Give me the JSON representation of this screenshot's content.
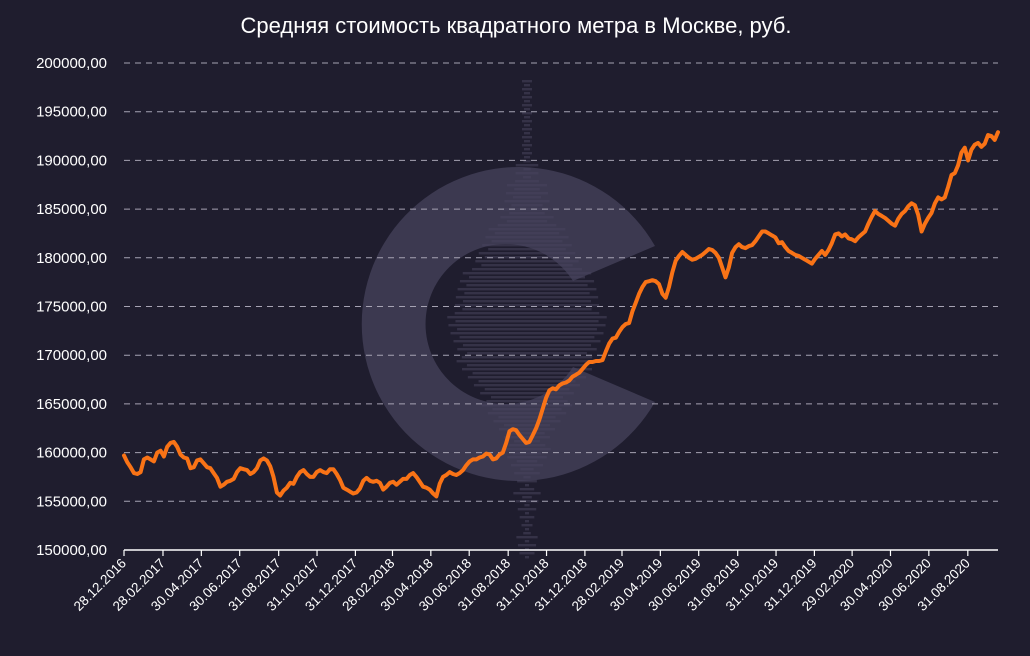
{
  "chart_data": {
    "type": "line",
    "title": "Средняя стоимость квадратного метра в Москве, руб.",
    "xlabel": "",
    "ylabel": "",
    "ylim": [
      150000,
      200000
    ],
    "y_ticks": [
      "150000,00",
      "155000,00",
      "160000,00",
      "165000,00",
      "170000,00",
      "175000,00",
      "180000,00",
      "185000,00",
      "190000,00",
      "195000,00",
      "200000,00"
    ],
    "x_ticks": [
      "28.12.2016",
      "28.02.2017",
      "30.04.2017",
      "30.06.2017",
      "31.08.2017",
      "31.10.2017",
      "31.12.2017",
      "28.02.2018",
      "30.04.2018",
      "30.06.2018",
      "31.08.2018",
      "31.10.2018",
      "31.12.2018",
      "28.02.2019",
      "30.04.2019",
      "30.06.2019",
      "31.08.2019",
      "31.10.2019",
      "31.12.2019",
      "29.02.2020",
      "30.04.2020",
      "30.06.2020",
      "31.08.2020"
    ],
    "x_start": "28.12.2016",
    "x_end": "18.10.2020",
    "grid": true,
    "legend": "none",
    "line_color": "#f97316",
    "series": [
      {
        "name": "",
        "values": [
          159700,
          159000,
          158500,
          157900,
          157800,
          158000,
          159300,
          159500,
          159300,
          159100,
          160000,
          160200,
          159600,
          160600,
          161000,
          161100,
          160600,
          159800,
          159500,
          159400,
          158400,
          158500,
          159200,
          159300,
          158900,
          158500,
          158400,
          157900,
          157400,
          156500,
          156700,
          157000,
          157100,
          157300,
          158000,
          158400,
          158300,
          158200,
          157800,
          158000,
          158400,
          159200,
          159400,
          159200,
          158600,
          157500,
          155900,
          155600,
          156100,
          156400,
          156900,
          156800,
          157500,
          158000,
          158200,
          157800,
          157500,
          157500,
          158000,
          158200,
          158000,
          157900,
          158300,
          158300,
          157800,
          157200,
          156400,
          156200,
          156000,
          155800,
          155900,
          156300,
          157100,
          157400,
          157100,
          157000,
          157100,
          156900,
          156200,
          156500,
          156900,
          157000,
          156700,
          157000,
          157300,
          157300,
          157700,
          157900,
          157500,
          157000,
          156500,
          156400,
          156200,
          155800,
          155500,
          156800,
          157500,
          157700,
          158000,
          157800,
          157700,
          157900,
          158200,
          158700,
          159100,
          159300,
          159300,
          159500,
          159600,
          159900,
          159800,
          159300,
          159400,
          159800,
          160000,
          161000,
          162200,
          162400,
          162300,
          161800,
          161400,
          161000,
          161100,
          161800,
          162500,
          163400,
          164500,
          165600,
          166400,
          166600,
          166500,
          166900,
          167100,
          167200,
          167400,
          167800,
          168000,
          168200,
          168600,
          169000,
          169300,
          169300,
          169400,
          169400,
          169500,
          170400,
          171200,
          171700,
          171800,
          172400,
          172900,
          173200,
          173300,
          174500,
          175400,
          176300,
          177000,
          177500,
          177600,
          177700,
          177600,
          177300,
          176300,
          175900,
          177000,
          178500,
          179700,
          180200,
          180600,
          180300,
          180000,
          179800,
          179900,
          180100,
          180300,
          180600,
          180900,
          180800,
          180500,
          180000,
          179000,
          178000,
          179000,
          180500,
          181100,
          181400,
          181100,
          181000,
          181200,
          181300,
          181700,
          182200,
          182700,
          182700,
          182500,
          182300,
          182100,
          181500,
          181600,
          181100,
          180700,
          180500,
          180300,
          180200,
          180000,
          179800,
          179600,
          179400,
          179900,
          180300,
          180700,
          180300,
          180800,
          181500,
          182400,
          182500,
          182200,
          182400,
          182000,
          181900,
          181700,
          182100,
          182400,
          182700,
          183500,
          184200,
          184800,
          184500,
          184300,
          184100,
          183800,
          183500,
          183300,
          184000,
          184500,
          184800,
          185300,
          185600,
          185400,
          184400,
          182700,
          183500,
          184100,
          184600,
          185600,
          186200,
          186000,
          186200,
          187300,
          188500,
          188700,
          189500,
          190800,
          191300,
          190000,
          191100,
          191600,
          191800,
          191400,
          191700,
          192600,
          192500,
          192100,
          192900
        ]
      }
    ]
  }
}
